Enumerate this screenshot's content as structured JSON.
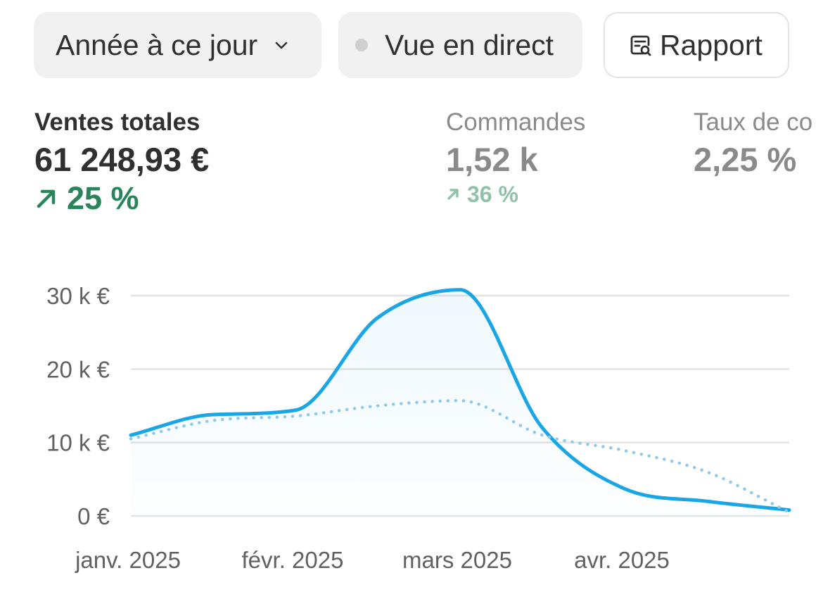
{
  "toolbar": {
    "period_label": "Année à ce jour",
    "live_label": "Vue en direct",
    "report_label": "Rapport"
  },
  "metrics": [
    {
      "label": "Ventes totales",
      "value": "61 248,93 €",
      "delta": "25 %"
    },
    {
      "label": "Commandes",
      "value": "1,52 k",
      "delta": "36 %"
    },
    {
      "label": "Taux de co",
      "value": "2,25 %"
    }
  ],
  "colors": {
    "accent": "#1aa6e4",
    "positive": "#29845a",
    "positive_muted": "#8ec3a8",
    "muted_text": "#8a8a8a"
  },
  "icons": [
    "chevron-down-icon",
    "live-dot-icon",
    "report-search-icon",
    "arrow-up-right-icon"
  ],
  "chart_data": {
    "type": "line",
    "x": [
      0,
      0.5,
      1,
      1.5,
      2,
      2.5,
      3,
      3.5,
      4
    ],
    "x_ticks": [
      {
        "label": "janv. 2025",
        "x": 0
      },
      {
        "label": "févr. 2025",
        "x": 1
      },
      {
        "label": "mars 2025",
        "x": 2
      },
      {
        "label": "avr. 2025",
        "x": 3
      }
    ],
    "y_ticks": [
      {
        "label": "0 €",
        "value": 0
      },
      {
        "label": "10 k €",
        "value": 10000
      },
      {
        "label": "20 k €",
        "value": 20000
      },
      {
        "label": "30 k €",
        "value": 30000
      }
    ],
    "ylim": [
      0,
      30000
    ],
    "grid": true,
    "series": [
      {
        "style": "solid",
        "points": [
          [
            0,
            11000
          ],
          [
            0.5,
            13800
          ],
          [
            1,
            14400
          ],
          [
            1.5,
            27000
          ],
          [
            2,
            30800
          ],
          [
            2.5,
            12000
          ],
          [
            3,
            3700
          ],
          [
            3.5,
            2000
          ],
          [
            4,
            800
          ]
        ]
      },
      {
        "style": "dotted",
        "points": [
          [
            0,
            10500
          ],
          [
            0.5,
            13000
          ],
          [
            1,
            13600
          ],
          [
            1.5,
            15000
          ],
          [
            2,
            15700
          ],
          [
            2.5,
            11000
          ],
          [
            3,
            8900
          ],
          [
            3.5,
            6000
          ],
          [
            4,
            500
          ]
        ]
      }
    ]
  }
}
